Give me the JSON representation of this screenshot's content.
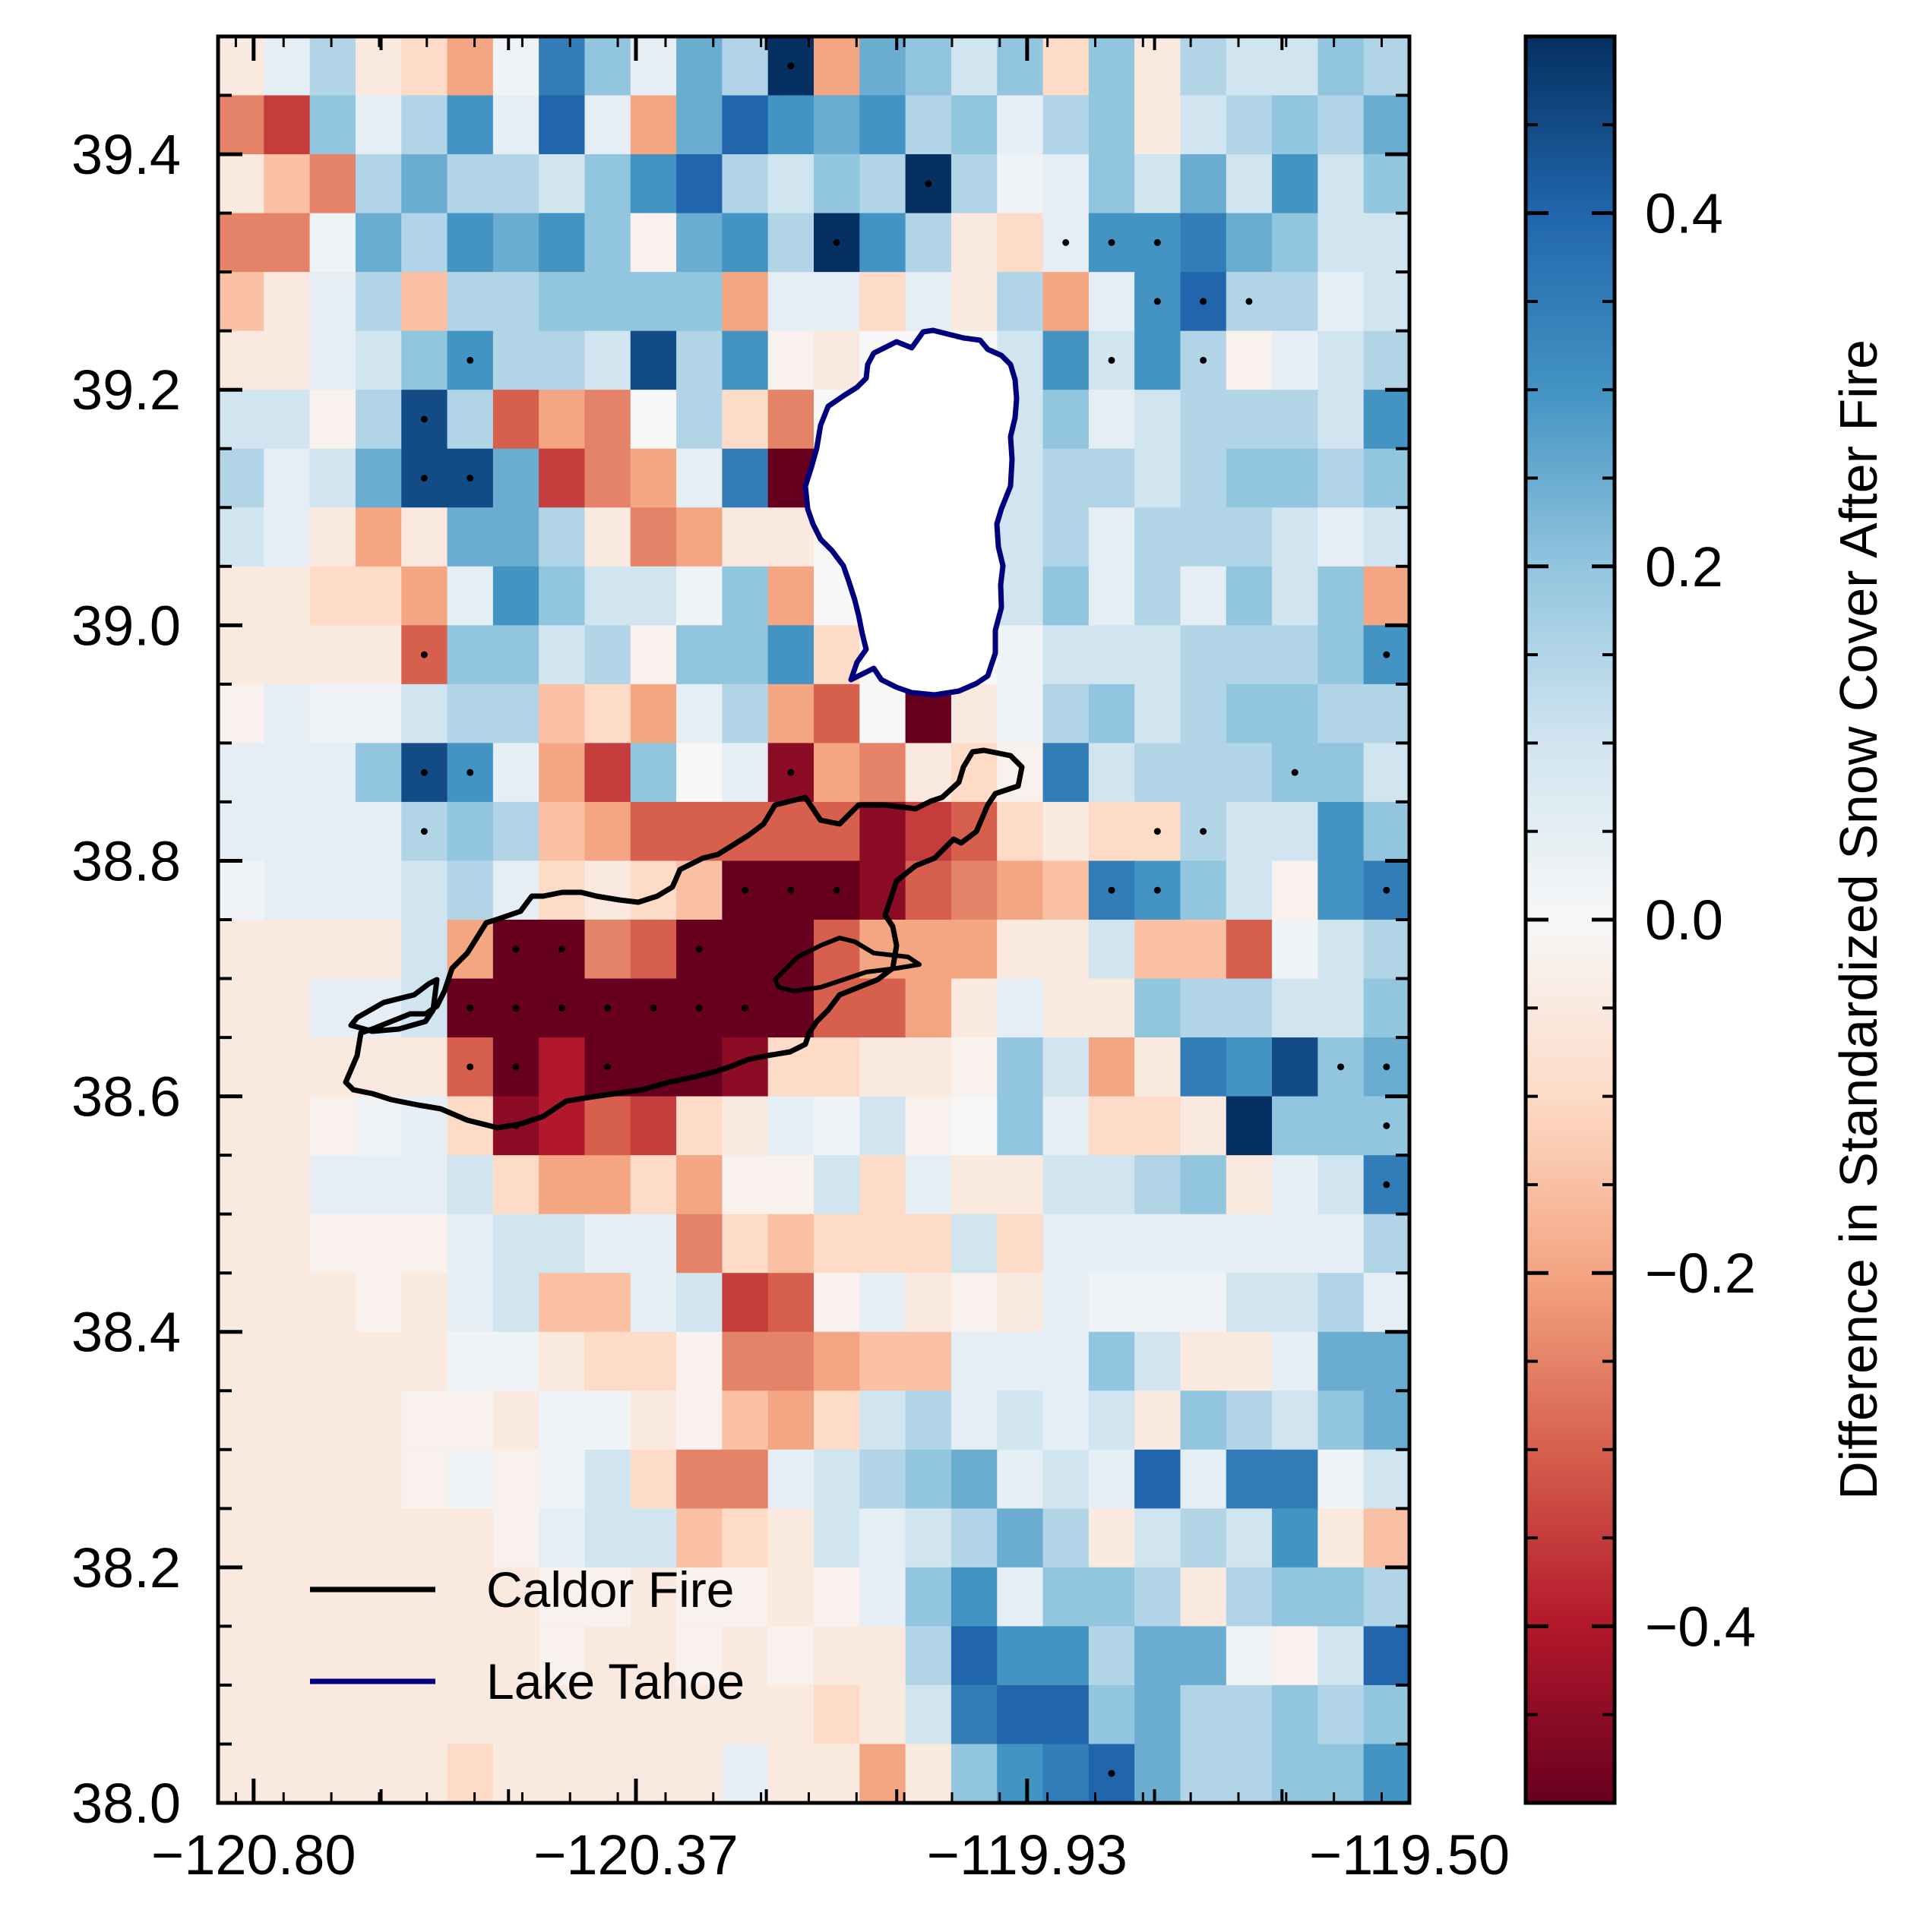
{
  "chart_data": {
    "type": "heatmap",
    "colorbar": {
      "label": "Difference in Standardized Snow Cover After Fire",
      "range": [
        -0.5,
        0.5
      ],
      "ticks": [
        0.4,
        0.2,
        0.0,
        -0.2,
        -0.4
      ],
      "tick_labels": [
        "0.4",
        "0.2",
        "0.0",
        "−0.2",
        "−0.4"
      ],
      "colormap": "RdBu"
    },
    "x_axis": {
      "range": [
        -120.84,
        -119.5
      ],
      "ticks": [
        -120.8,
        -120.37,
        -119.93,
        -119.5
      ],
      "tick_labels": [
        "−120.80",
        "−120.37",
        "−119.93",
        "−119.50"
      ]
    },
    "y_axis": {
      "range": [
        38.0,
        39.5
      ],
      "ticks": [
        38.0,
        38.2,
        38.4,
        38.6,
        38.8,
        39.0,
        39.2,
        39.4
      ],
      "tick_labels": [
        "38.0",
        "38.2",
        "38.4",
        "38.6",
        "38.8",
        "39.0",
        "39.2",
        "39.4"
      ]
    },
    "legend": {
      "placement": "lower-left",
      "entries": [
        {
          "label": "Caldor Fire",
          "color": "#000000"
        },
        {
          "label": "Lake Tahoe",
          "color": "#00007f"
        }
      ]
    },
    "grid": {
      "ncols": 26,
      "nrows": 30,
      "rows_top_to_bottom": [
        [
          -0.05,
          0.05,
          0.15,
          -0.05,
          -0.1,
          -0.2,
          0.02,
          0.35,
          0.2,
          0.05,
          0.25,
          0.15,
          0.5,
          -0.2,
          0.25,
          0.2,
          0.1,
          0.2,
          -0.1,
          0.2,
          -0.05,
          0.15,
          0.1,
          0.1,
          0.2,
          0.15
        ],
        [
          -0.25,
          -0.35,
          0.2,
          0.05,
          0.15,
          0.3,
          0.05,
          0.4,
          0.05,
          -0.2,
          0.25,
          0.4,
          0.3,
          0.25,
          0.3,
          0.15,
          0.2,
          0.05,
          0.15,
          0.2,
          -0.05,
          0.1,
          0.15,
          0.2,
          0.15,
          0.25
        ],
        [
          -0.05,
          -0.15,
          -0.25,
          0.15,
          0.25,
          0.15,
          0.15,
          0.1,
          0.2,
          0.3,
          0.4,
          0.15,
          0.1,
          0.2,
          0.15,
          0.5,
          0.15,
          0.02,
          0.05,
          0.2,
          0.1,
          0.25,
          0.1,
          0.3,
          0.1,
          0.2
        ],
        [
          -0.25,
          -0.25,
          0.02,
          0.25,
          0.15,
          0.3,
          0.25,
          0.3,
          0.2,
          -0.02,
          0.25,
          0.3,
          0.15,
          0.5,
          0.3,
          0.15,
          -0.05,
          -0.1,
          0.05,
          0.3,
          0.3,
          0.35,
          0.25,
          0.2,
          0.1,
          0.1
        ],
        [
          -0.15,
          -0.05,
          0.05,
          0.15,
          -0.15,
          0.15,
          0.15,
          0.2,
          0.2,
          0.2,
          0.2,
          -0.2,
          0.05,
          0.05,
          -0.1,
          0.05,
          -0.05,
          0.15,
          -0.2,
          0.05,
          0.3,
          0.4,
          0.15,
          0.15,
          0.05,
          0.1
        ],
        [
          -0.05,
          -0.05,
          0.05,
          0.1,
          0.2,
          0.3,
          0.15,
          0.15,
          0.1,
          0.45,
          0.15,
          0.3,
          -0.02,
          -0.05,
          0.0,
          0.0,
          0.0,
          0.1,
          0.3,
          0.1,
          0.3,
          0.15,
          -0.02,
          0.05,
          0.1,
          0.15
        ],
        [
          0.1,
          0.1,
          -0.02,
          0.15,
          0.45,
          0.15,
          -0.3,
          -0.2,
          -0.25,
          0.0,
          0.15,
          -0.1,
          -0.25,
          0.0,
          0.0,
          0.0,
          -0.35,
          0.1,
          0.2,
          0.05,
          0.1,
          0.15,
          0.15,
          0.15,
          0.1,
          0.3
        ],
        [
          0.15,
          0.05,
          0.1,
          0.25,
          0.45,
          0.45,
          0.25,
          -0.35,
          -0.25,
          -0.2,
          0.05,
          0.35,
          -0.5,
          0.0,
          0.0,
          0.0,
          0.0,
          0.1,
          0.15,
          0.15,
          0.1,
          0.15,
          0.2,
          0.2,
          0.15,
          0.2
        ],
        [
          0.1,
          0.05,
          -0.05,
          -0.2,
          -0.05,
          0.25,
          0.25,
          0.15,
          -0.05,
          -0.25,
          -0.2,
          -0.05,
          -0.05,
          0.0,
          0.0,
          0.0,
          -0.1,
          0.1,
          0.15,
          0.05,
          0.15,
          0.15,
          0.15,
          0.1,
          0.05,
          0.1
        ],
        [
          -0.05,
          -0.05,
          -0.1,
          -0.1,
          -0.2,
          0.05,
          0.3,
          0.2,
          0.1,
          0.1,
          0.02,
          0.2,
          -0.2,
          0.0,
          0.0,
          0.0,
          0.0,
          0.1,
          0.2,
          0.05,
          0.15,
          0.05,
          0.2,
          0.1,
          0.2,
          -0.2
        ],
        [
          -0.05,
          -0.05,
          -0.05,
          -0.05,
          -0.3,
          0.2,
          0.2,
          0.1,
          0.15,
          -0.02,
          0.2,
          0.2,
          0.3,
          -0.1,
          0.0,
          0.0,
          0.0,
          0.02,
          0.1,
          0.1,
          0.1,
          0.15,
          0.15,
          0.15,
          0.2,
          0.3
        ],
        [
          -0.02,
          0.05,
          0.02,
          0.02,
          0.1,
          0.15,
          0.15,
          -0.15,
          -0.1,
          -0.2,
          0.05,
          0.15,
          -0.2,
          -0.3,
          0.0,
          -0.5,
          -0.05,
          0.02,
          0.15,
          0.2,
          0.1,
          0.15,
          0.2,
          0.2,
          0.15,
          0.15
        ],
        [
          0.05,
          0.05,
          0.05,
          0.2,
          0.45,
          0.3,
          0.05,
          -0.2,
          -0.35,
          0.2,
          0.0,
          0.05,
          -0.45,
          -0.2,
          -0.25,
          -0.05,
          -0.1,
          -0.02,
          0.35,
          0.1,
          0.15,
          0.15,
          0.15,
          0.2,
          0.2,
          0.1
        ],
        [
          0.05,
          0.05,
          0.05,
          0.05,
          0.15,
          0.2,
          0.15,
          -0.15,
          -0.2,
          -0.3,
          -0.3,
          -0.3,
          -0.3,
          -0.3,
          -0.45,
          -0.35,
          -0.3,
          -0.1,
          -0.05,
          -0.1,
          -0.1,
          0.15,
          0.1,
          0.1,
          0.3,
          0.2
        ],
        [
          0.02,
          0.05,
          0.05,
          0.05,
          0.1,
          0.15,
          0.05,
          -0.1,
          -0.05,
          -0.1,
          -0.15,
          -0.5,
          -0.5,
          -0.5,
          -0.45,
          -0.3,
          -0.25,
          -0.2,
          -0.15,
          0.35,
          0.3,
          0.2,
          0.1,
          -0.02,
          0.3,
          0.35
        ],
        [
          -0.05,
          -0.05,
          -0.05,
          -0.05,
          0.1,
          -0.2,
          -0.5,
          -0.5,
          -0.25,
          -0.3,
          -0.5,
          -0.5,
          -0.5,
          -0.3,
          -0.2,
          -0.2,
          -0.2,
          -0.05,
          -0.05,
          0.1,
          -0.15,
          -0.15,
          -0.3,
          0.02,
          0.1,
          0.15
        ],
        [
          -0.05,
          -0.05,
          0.05,
          0.05,
          0.1,
          -0.5,
          -0.5,
          -0.5,
          -0.5,
          -0.5,
          -0.5,
          -0.5,
          -0.5,
          -0.3,
          -0.3,
          -0.2,
          -0.05,
          0.05,
          -0.05,
          -0.05,
          0.2,
          0.15,
          0.15,
          0.1,
          0.1,
          0.2
        ],
        [
          -0.05,
          -0.05,
          -0.05,
          -0.05,
          -0.05,
          -0.3,
          -0.5,
          -0.4,
          -0.5,
          -0.5,
          -0.5,
          -0.45,
          -0.1,
          -0.1,
          -0.05,
          -0.05,
          -0.02,
          0.2,
          0.1,
          -0.2,
          -0.05,
          0.35,
          0.3,
          0.45,
          0.2,
          0.25
        ],
        [
          -0.05,
          -0.05,
          -0.02,
          0.02,
          0.05,
          -0.1,
          -0.45,
          -0.4,
          -0.3,
          -0.35,
          -0.1,
          -0.05,
          0.05,
          0.02,
          0.1,
          -0.02,
          0.0,
          0.2,
          0.05,
          -0.1,
          -0.1,
          -0.05,
          0.5,
          0.2,
          0.2,
          0.2
        ],
        [
          -0.05,
          -0.05,
          0.05,
          0.05,
          0.05,
          0.1,
          -0.1,
          -0.2,
          -0.2,
          -0.1,
          -0.2,
          -0.02,
          -0.02,
          0.1,
          -0.1,
          0.05,
          -0.05,
          -0.05,
          0.1,
          0.1,
          0.15,
          0.2,
          -0.05,
          0.05,
          0.1,
          0.35
        ],
        [
          -0.05,
          -0.05,
          -0.02,
          -0.02,
          -0.02,
          0.05,
          0.1,
          0.1,
          0.05,
          0.05,
          -0.25,
          -0.1,
          -0.15,
          -0.1,
          -0.1,
          -0.1,
          0.1,
          -0.1,
          0.05,
          0.05,
          0.05,
          0.05,
          0.05,
          0.05,
          0.05,
          0.15
        ],
        [
          -0.05,
          -0.05,
          -0.05,
          -0.02,
          -0.05,
          0.05,
          0.1,
          -0.15,
          -0.15,
          0.05,
          0.1,
          -0.35,
          -0.3,
          -0.02,
          0.05,
          -0.05,
          -0.02,
          -0.05,
          0.05,
          0.02,
          0.02,
          0.02,
          0.1,
          0.1,
          0.15,
          0.05
        ],
        [
          -0.05,
          -0.05,
          -0.05,
          -0.05,
          -0.05,
          0.02,
          0.02,
          -0.05,
          -0.1,
          -0.1,
          -0.02,
          -0.25,
          -0.25,
          -0.2,
          -0.15,
          -0.15,
          0.05,
          0.05,
          0.05,
          0.2,
          0.1,
          -0.05,
          -0.05,
          0.05,
          0.25,
          0.25
        ],
        [
          -0.05,
          -0.05,
          -0.05,
          -0.05,
          -0.02,
          -0.02,
          -0.05,
          0.02,
          0.02,
          -0.05,
          -0.02,
          -0.15,
          -0.2,
          -0.1,
          0.1,
          0.15,
          0.05,
          0.1,
          0.05,
          0.1,
          -0.05,
          0.2,
          0.15,
          0.1,
          0.2,
          0.25
        ],
        [
          -0.05,
          -0.05,
          -0.05,
          -0.05,
          -0.02,
          0.02,
          -0.02,
          0.02,
          0.1,
          -0.1,
          -0.25,
          -0.25,
          0.05,
          0.1,
          0.15,
          0.2,
          0.25,
          0.05,
          0.1,
          0.05,
          0.4,
          0.05,
          0.35,
          0.35,
          0.02,
          0.1
        ],
        [
          -0.05,
          -0.05,
          -0.05,
          -0.05,
          -0.05,
          -0.05,
          -0.02,
          0.05,
          0.1,
          0.1,
          -0.15,
          -0.1,
          -0.05,
          0.1,
          0.05,
          0.1,
          0.15,
          0.25,
          0.15,
          -0.05,
          0.1,
          0.15,
          0.1,
          0.3,
          -0.05,
          -0.15
        ],
        [
          -0.05,
          -0.05,
          -0.05,
          -0.05,
          -0.05,
          -0.05,
          -0.05,
          -0.02,
          -0.02,
          -0.05,
          -0.02,
          -0.02,
          -0.05,
          -0.02,
          0.05,
          0.2,
          0.3,
          0.05,
          0.2,
          0.2,
          0.15,
          -0.05,
          0.15,
          0.2,
          0.2,
          0.15
        ],
        [
          -0.05,
          -0.05,
          -0.05,
          -0.05,
          -0.05,
          -0.05,
          -0.05,
          -0.02,
          -0.05,
          -0.05,
          -0.02,
          -0.05,
          -0.02,
          -0.05,
          -0.05,
          0.15,
          0.4,
          0.3,
          0.3,
          0.15,
          0.25,
          0.25,
          0.02,
          -0.02,
          0.1,
          0.4
        ],
        [
          -0.05,
          -0.05,
          -0.05,
          -0.05,
          -0.05,
          -0.05,
          -0.05,
          -0.05,
          -0.05,
          -0.05,
          -0.05,
          -0.05,
          -0.05,
          -0.1,
          -0.05,
          0.1,
          0.35,
          0.4,
          0.4,
          0.2,
          0.25,
          0.15,
          0.15,
          0.2,
          0.15,
          0.2
        ],
        [
          -0.05,
          -0.05,
          -0.05,
          -0.05,
          -0.05,
          -0.1,
          -0.05,
          -0.05,
          -0.05,
          -0.05,
          -0.05,
          0.05,
          -0.05,
          -0.05,
          -0.2,
          -0.05,
          0.2,
          0.3,
          0.35,
          0.4,
          0.25,
          0.15,
          0.15,
          0.2,
          0.2,
          0.3
        ]
      ]
    },
    "significance_dots": [
      [
        0,
        12
      ],
      [
        3,
        13
      ],
      [
        2,
        15
      ],
      [
        3,
        18
      ],
      [
        3,
        19
      ],
      [
        3,
        20
      ],
      [
        4,
        21
      ],
      [
        4,
        22
      ],
      [
        4,
        20
      ],
      [
        5,
        5
      ],
      [
        5,
        19
      ],
      [
        5,
        21
      ],
      [
        6,
        4
      ],
      [
        7,
        4
      ],
      [
        7,
        5
      ],
      [
        10,
        4
      ],
      [
        10,
        25
      ],
      [
        12,
        4
      ],
      [
        12,
        5
      ],
      [
        12,
        23
      ],
      [
        12,
        12
      ],
      [
        13,
        4
      ],
      [
        13,
        20
      ],
      [
        13,
        21
      ],
      [
        14,
        11
      ],
      [
        14,
        12
      ],
      [
        14,
        13
      ],
      [
        14,
        19
      ],
      [
        14,
        20
      ],
      [
        14,
        25
      ],
      [
        15,
        6
      ],
      [
        15,
        7
      ],
      [
        15,
        10
      ],
      [
        16,
        5
      ],
      [
        16,
        6
      ],
      [
        16,
        7
      ],
      [
        16,
        8
      ],
      [
        16,
        9
      ],
      [
        16,
        10
      ],
      [
        16,
        11
      ],
      [
        17,
        5
      ],
      [
        17,
        6
      ],
      [
        17,
        8
      ],
      [
        17,
        24
      ],
      [
        17,
        25
      ],
      [
        18,
        6
      ],
      [
        18,
        25
      ],
      [
        19,
        25
      ],
      [
        29,
        19
      ]
    ]
  }
}
